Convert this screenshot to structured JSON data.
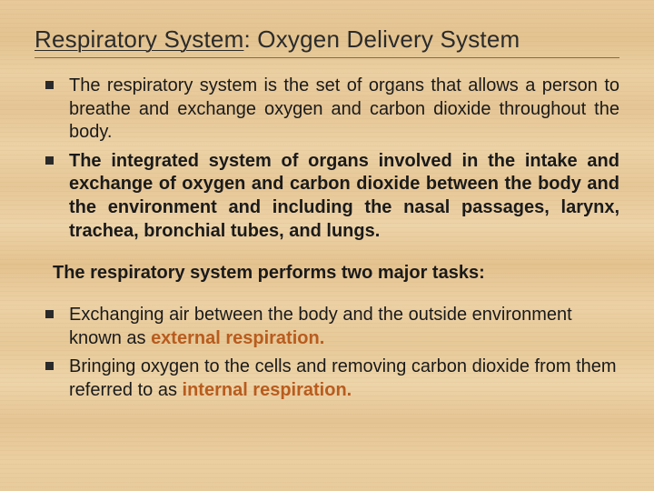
{
  "title_prefix": "Respiratory System",
  "title_rest": ": Oxygen Delivery System",
  "bullets1": {
    "item1": "The respiratory system is the set of organs that allows a person to  breathe and exchange oxygen and carbon dioxide throughout the  body.",
    "item2": "The integrated system of organs involved in the intake and  exchange of oxygen and carbon dioxide between the body and  the environment and including the nasal passages, larynx,  trachea, bronchial tubes, and lungs."
  },
  "subheading": "The respiratory system performs two major tasks:",
  "bullets2": {
    "item1_a": "Exchanging air between the body and the outside environment known as ",
    "item1_hl": "external respiration.",
    "item2_a": "Bringing oxygen to the cells and removing carbon dioxide from them referred to as ",
    "item2_hl": "internal respiration."
  },
  "colors": {
    "highlight": "#b85c1e",
    "text": "#1a1a1a"
  }
}
